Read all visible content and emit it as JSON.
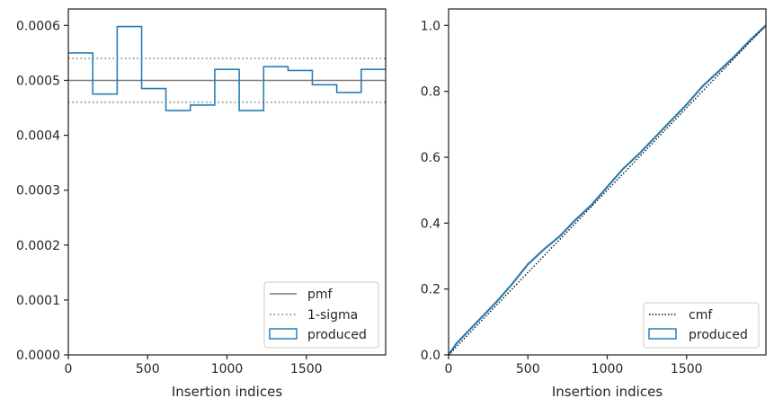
{
  "colors": {
    "hist": "#2a7fb5",
    "pmf": "#7a7a7a",
    "sigma": "#7a7a7a",
    "cmf": "#111111",
    "axis": "#262626",
    "legend_border": "#cccccc"
  },
  "chart_data": [
    {
      "type": "step-histogram",
      "xlabel": "Insertion indices",
      "ylabel": "",
      "xlim": [
        0,
        2000
      ],
      "ylim": [
        0,
        0.00063
      ],
      "grid": false,
      "legend_placement": "lower-right",
      "x_ticks": [
        0,
        500,
        1000,
        1500
      ],
      "x_tick_labels": [
        "0",
        "500",
        "1000",
        "1500"
      ],
      "y_ticks": [
        0,
        0.0001,
        0.0002,
        0.0003,
        0.0004,
        0.0005,
        0.0006
      ],
      "y_tick_labels": [
        "0.0000",
        "0.0001",
        "0.0002",
        "0.0003",
        "0.0004",
        "0.0005",
        "0.0006"
      ],
      "bin_edges": [
        0,
        154,
        308,
        462,
        615,
        769,
        923,
        1077,
        1231,
        1385,
        1538,
        1692,
        1846,
        2000
      ],
      "values": [
        0.00055,
        0.000475,
        0.000598,
        0.000485,
        0.000445,
        0.000455,
        0.00052,
        0.000445,
        0.000525,
        0.000518,
        0.000492,
        0.000478,
        0.00052
      ],
      "pmf": 0.0005,
      "sigma_band": [
        0.00046,
        0.00054
      ],
      "legend": [
        "pmf",
        "1-sigma",
        "produced"
      ]
    },
    {
      "type": "line",
      "xlabel": "Insertion indices",
      "ylabel": "",
      "xlim": [
        0,
        2000
      ],
      "ylim": [
        0,
        1.05
      ],
      "grid": false,
      "legend_placement": "lower-right",
      "x_ticks": [
        0,
        500,
        1000,
        1500
      ],
      "x_tick_labels": [
        "0",
        "500",
        "1000",
        "1500"
      ],
      "y_ticks": [
        0,
        0.2,
        0.4,
        0.6,
        0.8,
        1.0
      ],
      "y_tick_labels": [
        "0.0",
        "0.2",
        "0.4",
        "0.6",
        "0.8",
        "1.0"
      ],
      "cmf": {
        "x": [
          0,
          2000
        ],
        "y": [
          0,
          1.0
        ]
      },
      "produced": {
        "x": [
          0,
          50,
          100,
          200,
          300,
          400,
          500,
          600,
          700,
          800,
          900,
          1000,
          1100,
          1200,
          1300,
          1400,
          1500,
          1600,
          1700,
          1800,
          1900,
          2000
        ],
        "y": [
          0,
          0.035,
          0.06,
          0.11,
          0.16,
          0.215,
          0.275,
          0.32,
          0.36,
          0.41,
          0.455,
          0.51,
          0.565,
          0.61,
          0.66,
          0.71,
          0.76,
          0.815,
          0.86,
          0.905,
          0.955,
          1.0
        ]
      },
      "legend": [
        "cmf",
        "produced"
      ]
    }
  ]
}
